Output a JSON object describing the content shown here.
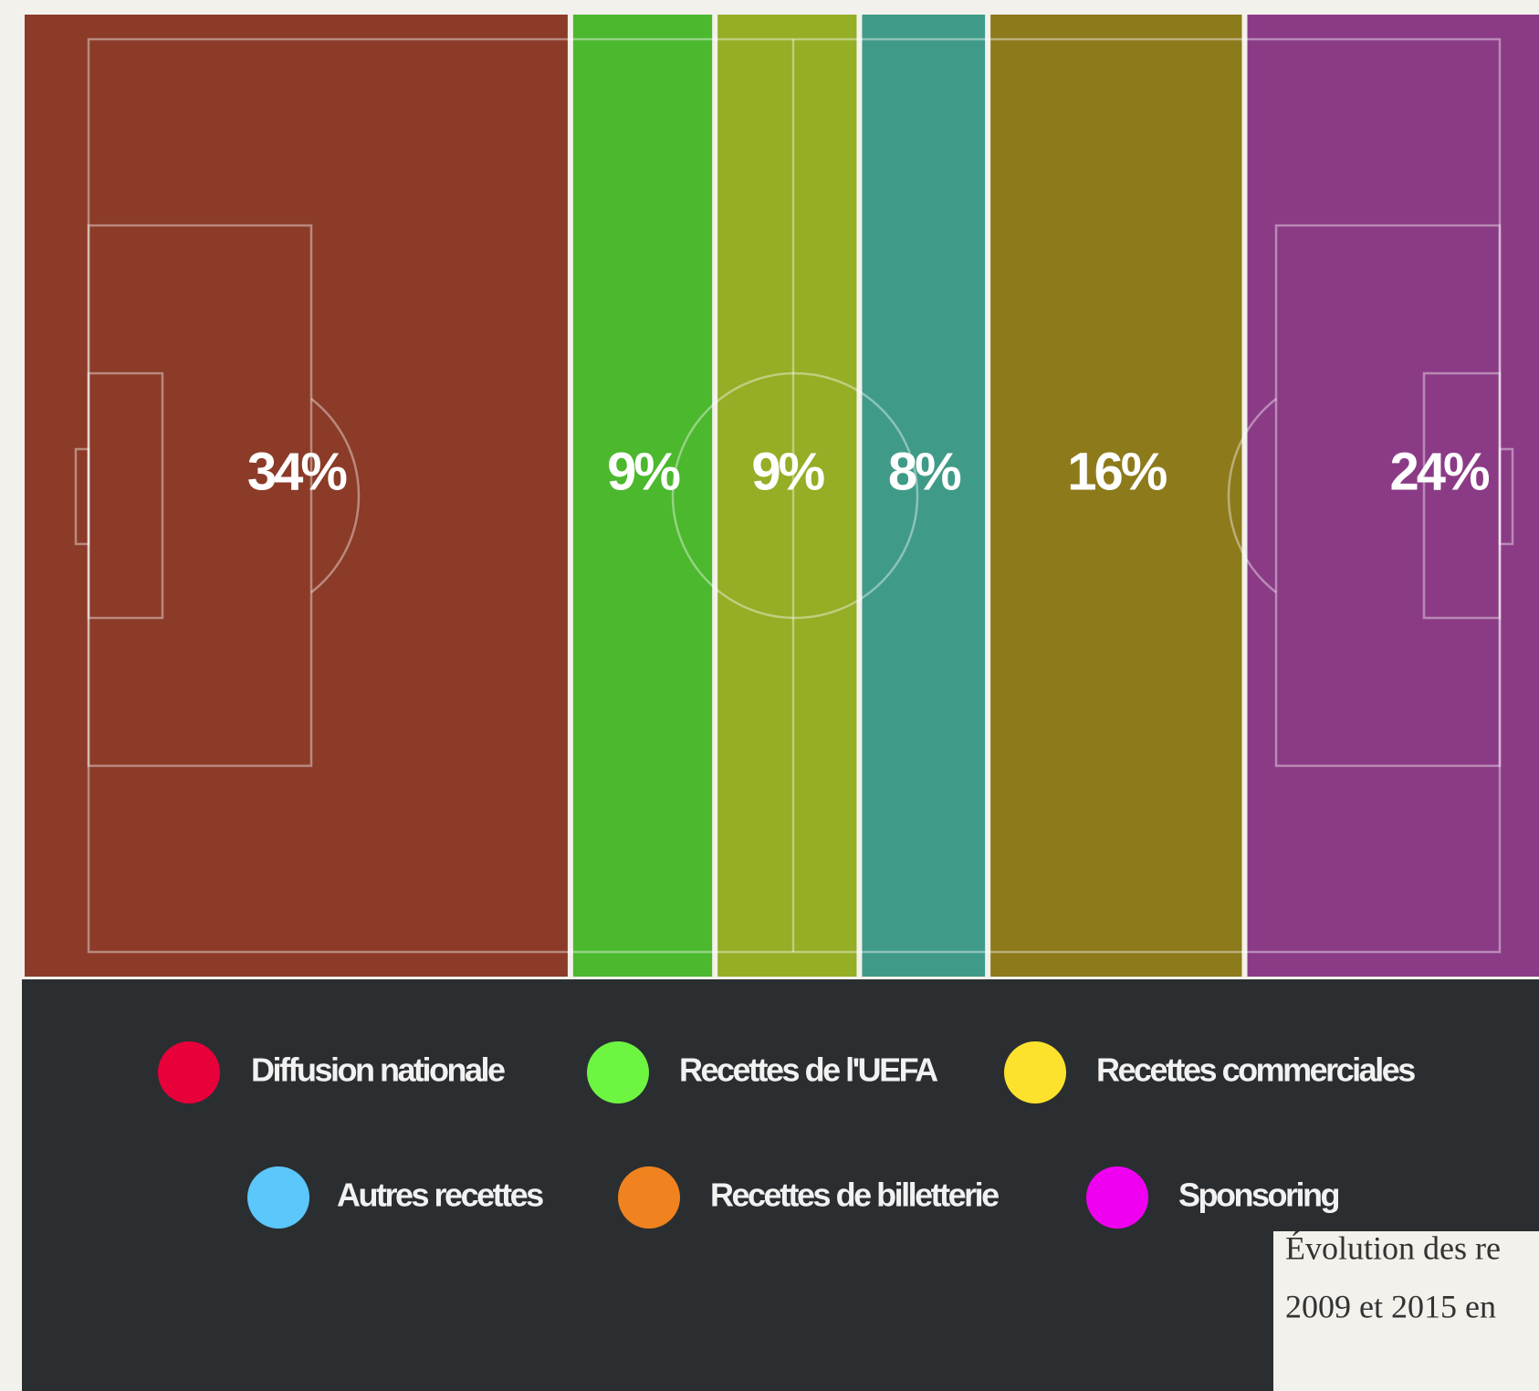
{
  "chart_data": {
    "type": "stacked_bar",
    "orientation": "horizontal",
    "series": [
      {
        "name": "Diffusion nationale",
        "color": "#e8003a",
        "band_color": "#8b3b28",
        "values": [
          34
        ],
        "value_labels": [
          "34%"
        ]
      },
      {
        "name": "Recettes de l'UEFA",
        "color": "#6ef542",
        "band_color": "#4bb82d",
        "values": [
          9
        ],
        "value_labels": [
          "9%"
        ]
      },
      {
        "name": "Recettes commerciales",
        "color": "#fde22d",
        "band_color": "#94ae25",
        "values": [
          9
        ],
        "value_labels": [
          "9%"
        ]
      },
      {
        "name": "Autres recettes",
        "color": "#5bc7fb",
        "band_color": "#3f9b87",
        "values": [
          8
        ],
        "value_labels": [
          "8%"
        ]
      },
      {
        "name": "Recettes de billetterie",
        "color": "#f0831f",
        "band_color": "#8d7a1b",
        "values": [
          16
        ],
        "value_labels": [
          "16%"
        ]
      },
      {
        "name": "Sponsoring",
        "color": "#f000f0",
        "band_color": "#8b3b86",
        "values": [
          24
        ],
        "value_labels": [
          "24%"
        ]
      }
    ],
    "xlim": [
      0,
      100
    ],
    "caption_lines": [
      "Évolution des re",
      "2009 et 2015 en"
    ]
  }
}
